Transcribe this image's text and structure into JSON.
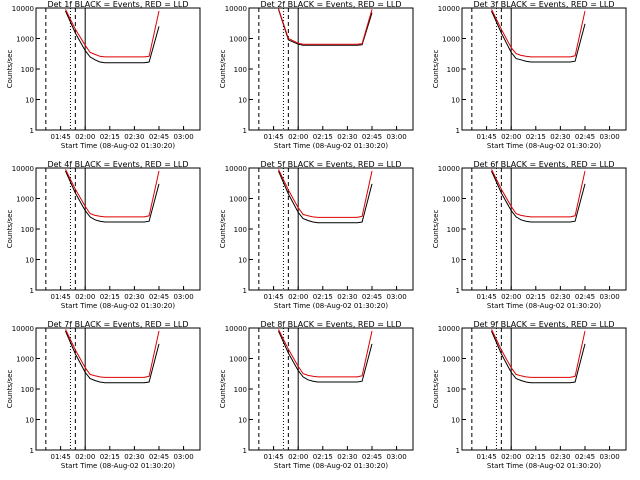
{
  "panel_common": {
    "ylabel": "Counts/sec",
    "xlabel": "Start Time (08-Aug-02 01:30:20)",
    "y_tick_labels": [
      "1",
      "10",
      "100",
      "1000",
      "10000"
    ],
    "x_tick_labels": [
      "01:45",
      "02:00",
      "02:15",
      "02:30",
      "02:45",
      "03:00"
    ],
    "colors": {
      "events": "#000000",
      "lld": "#e00000",
      "axes": "#000000"
    }
  },
  "chart_data": [
    {
      "type": "line",
      "title": "Det 1f BLACK = Events, RED = LLD",
      "xlabel": "Start Time (08-Aug-02 01:30:20)",
      "ylabel": "Counts/sec",
      "y_scale": "log",
      "ylim": [
        1,
        10000
      ],
      "x_ticks": [
        "01:45",
        "02:00",
        "02:15",
        "02:30",
        "02:45",
        "03:00"
      ],
      "series": [
        {
          "name": "Events",
          "color": "#000000",
          "x": [
            1.8,
            1.9,
            2.0,
            2.05,
            2.1,
            2.15,
            2.2,
            2.25,
            2.3,
            2.35,
            2.4,
            2.45,
            2.5,
            2.55,
            2.6,
            2.65,
            2.75
          ],
          "y": [
            8000,
            1500,
            400,
            250,
            200,
            170,
            160,
            160,
            160,
            160,
            160,
            160,
            160,
            160,
            160,
            170,
            2500
          ]
        },
        {
          "name": "LLD",
          "color": "#e00000",
          "x": [
            1.8,
            1.9,
            2.0,
            2.05,
            2.1,
            2.15,
            2.2,
            2.25,
            2.3,
            2.35,
            2.4,
            2.45,
            2.5,
            2.55,
            2.6,
            2.65,
            2.75
          ],
          "y": [
            9000,
            2000,
            600,
            350,
            300,
            260,
            250,
            250,
            250,
            250,
            250,
            250,
            250,
            250,
            250,
            260,
            8000
          ]
        }
      ]
    },
    {
      "type": "line",
      "title": "Det 2f BLACK = Events, RED = LLD",
      "xlabel": "Start Time (08-Aug-02 01:30:20)",
      "ylabel": "Counts/sec",
      "y_scale": "log",
      "ylim": [
        1,
        10000
      ],
      "x_ticks": [
        "01:45",
        "02:00",
        "02:15",
        "02:30",
        "02:45",
        "03:00"
      ],
      "series": [
        {
          "name": "Events",
          "color": "#000000",
          "x": [
            1.8,
            1.9,
            2.0,
            2.05,
            2.1,
            2.15,
            2.2,
            2.25,
            2.3,
            2.35,
            2.4,
            2.45,
            2.5,
            2.55,
            2.6,
            2.65,
            2.75
          ],
          "y": [
            9000,
            900,
            650,
            600,
            600,
            600,
            600,
            600,
            600,
            600,
            600,
            600,
            600,
            600,
            600,
            620,
            7000
          ]
        },
        {
          "name": "LLD",
          "color": "#e00000",
          "x": [
            1.8,
            1.9,
            2.0,
            2.05,
            2.1,
            2.15,
            2.2,
            2.25,
            2.3,
            2.35,
            2.4,
            2.45,
            2.5,
            2.55,
            2.6,
            2.65,
            2.75
          ],
          "y": [
            9500,
            1000,
            700,
            650,
            650,
            650,
            650,
            650,
            650,
            650,
            650,
            650,
            650,
            650,
            650,
            680,
            9000
          ]
        }
      ]
    },
    {
      "type": "line",
      "title": "Det 3f BLACK = Events, RED = LLD",
      "xlabel": "Start Time (08-Aug-02 01:30:20)",
      "ylabel": "Counts/sec",
      "y_scale": "log",
      "ylim": [
        1,
        10000
      ],
      "x_ticks": [
        "01:45",
        "02:00",
        "02:15",
        "02:30",
        "02:45",
        "03:00"
      ],
      "series": [
        {
          "name": "Events",
          "color": "#000000",
          "x": [
            1.8,
            1.9,
            2.0,
            2.05,
            2.1,
            2.15,
            2.2,
            2.25,
            2.3,
            2.35,
            2.4,
            2.45,
            2.5,
            2.55,
            2.6,
            2.65,
            2.75
          ],
          "y": [
            8000,
            1500,
            350,
            220,
            200,
            180,
            170,
            170,
            170,
            170,
            170,
            170,
            170,
            170,
            170,
            180,
            3000
          ]
        },
        {
          "name": "LLD",
          "color": "#e00000",
          "x": [
            1.8,
            1.9,
            2.0,
            2.05,
            2.1,
            2.15,
            2.2,
            2.25,
            2.3,
            2.35,
            2.4,
            2.45,
            2.5,
            2.55,
            2.6,
            2.65,
            2.75
          ],
          "y": [
            9000,
            2000,
            500,
            320,
            280,
            260,
            250,
            250,
            250,
            250,
            250,
            250,
            250,
            250,
            250,
            270,
            8000
          ]
        }
      ]
    },
    {
      "type": "line",
      "title": "Det 4f BLACK = Events, RED = LLD",
      "xlabel": "Start Time (08-Aug-02 01:30:20)",
      "ylabel": "Counts/sec",
      "y_scale": "log",
      "ylim": [
        1,
        10000
      ],
      "x_ticks": [
        "01:45",
        "02:00",
        "02:15",
        "02:30",
        "02:45",
        "03:00"
      ],
      "series": [
        {
          "name": "Events",
          "color": "#000000",
          "x": [
            1.8,
            1.9,
            2.0,
            2.05,
            2.1,
            2.15,
            2.2,
            2.25,
            2.3,
            2.35,
            2.4,
            2.45,
            2.5,
            2.55,
            2.6,
            2.65,
            2.75
          ],
          "y": [
            8000,
            1500,
            400,
            250,
            200,
            180,
            170,
            170,
            170,
            170,
            170,
            170,
            170,
            170,
            170,
            180,
            3000
          ]
        },
        {
          "name": "LLD",
          "color": "#e00000",
          "x": [
            1.8,
            1.9,
            2.0,
            2.05,
            2.1,
            2.15,
            2.2,
            2.25,
            2.3,
            2.35,
            2.4,
            2.45,
            2.5,
            2.55,
            2.6,
            2.65,
            2.75
          ],
          "y": [
            9000,
            2000,
            550,
            320,
            280,
            260,
            250,
            250,
            250,
            250,
            250,
            250,
            250,
            250,
            250,
            270,
            8000
          ]
        }
      ]
    },
    {
      "type": "line",
      "title": "Det 5f BLACK = Events, RED = LLD",
      "xlabel": "Start Time (08-Aug-02 01:30:20)",
      "ylabel": "Counts/sec",
      "y_scale": "log",
      "ylim": [
        1,
        10000
      ],
      "x_ticks": [
        "01:45",
        "02:00",
        "02:15",
        "02:30",
        "02:45",
        "03:00"
      ],
      "series": [
        {
          "name": "Events",
          "color": "#000000",
          "x": [
            1.8,
            1.9,
            2.0,
            2.05,
            2.1,
            2.15,
            2.2,
            2.25,
            2.3,
            2.35,
            2.4,
            2.45,
            2.5,
            2.55,
            2.6,
            2.65,
            2.75
          ],
          "y": [
            8000,
            1400,
            350,
            220,
            190,
            170,
            160,
            160,
            160,
            160,
            160,
            160,
            160,
            160,
            160,
            170,
            3000
          ]
        },
        {
          "name": "LLD",
          "color": "#e00000",
          "x": [
            1.8,
            1.9,
            2.0,
            2.05,
            2.1,
            2.15,
            2.2,
            2.25,
            2.3,
            2.35,
            2.4,
            2.45,
            2.5,
            2.55,
            2.6,
            2.65,
            2.75
          ],
          "y": [
            9000,
            1900,
            500,
            300,
            270,
            250,
            240,
            240,
            240,
            240,
            240,
            240,
            240,
            240,
            240,
            260,
            8000
          ]
        }
      ]
    },
    {
      "type": "line",
      "title": "Det 6f BLACK = Events, RED = LLD",
      "xlabel": "Start Time (08-Aug-02 01:30:20)",
      "ylabel": "Counts/sec",
      "y_scale": "log",
      "ylim": [
        1,
        10000
      ],
      "x_ticks": [
        "01:45",
        "02:00",
        "02:15",
        "02:30",
        "02:45",
        "03:00"
      ],
      "series": [
        {
          "name": "Events",
          "color": "#000000",
          "x": [
            1.8,
            1.9,
            2.0,
            2.05,
            2.1,
            2.15,
            2.2,
            2.25,
            2.3,
            2.35,
            2.4,
            2.45,
            2.5,
            2.55,
            2.6,
            2.65,
            2.75
          ],
          "y": [
            8000,
            1500,
            400,
            250,
            200,
            180,
            170,
            170,
            170,
            170,
            170,
            170,
            170,
            170,
            170,
            180,
            3000
          ]
        },
        {
          "name": "LLD",
          "color": "#e00000",
          "x": [
            1.8,
            1.9,
            2.0,
            2.05,
            2.1,
            2.15,
            2.2,
            2.25,
            2.3,
            2.35,
            2.4,
            2.45,
            2.5,
            2.55,
            2.6,
            2.65,
            2.75
          ],
          "y": [
            9000,
            2000,
            550,
            320,
            280,
            260,
            250,
            250,
            250,
            250,
            250,
            250,
            250,
            250,
            250,
            270,
            8000
          ]
        }
      ]
    },
    {
      "type": "line",
      "title": "Det 7f BLACK = Events, RED = LLD",
      "xlabel": "Start Time (08-Aug-02 01:30:20)",
      "ylabel": "Counts/sec",
      "y_scale": "log",
      "ylim": [
        1,
        10000
      ],
      "x_ticks": [
        "01:45",
        "02:00",
        "02:15",
        "02:30",
        "02:45",
        "03:00"
      ],
      "series": [
        {
          "name": "Events",
          "color": "#000000",
          "x": [
            1.8,
            1.9,
            2.0,
            2.05,
            2.1,
            2.15,
            2.2,
            2.25,
            2.3,
            2.35,
            2.4,
            2.45,
            2.5,
            2.55,
            2.6,
            2.65,
            2.75
          ],
          "y": [
            8000,
            1400,
            350,
            220,
            190,
            170,
            160,
            160,
            160,
            160,
            160,
            160,
            160,
            160,
            160,
            170,
            3000
          ]
        },
        {
          "name": "LLD",
          "color": "#e00000",
          "x": [
            1.8,
            1.9,
            2.0,
            2.05,
            2.1,
            2.15,
            2.2,
            2.25,
            2.3,
            2.35,
            2.4,
            2.45,
            2.5,
            2.55,
            2.6,
            2.65,
            2.75
          ],
          "y": [
            9000,
            1900,
            500,
            300,
            270,
            250,
            240,
            240,
            240,
            240,
            240,
            240,
            240,
            240,
            240,
            260,
            8000
          ]
        }
      ]
    },
    {
      "type": "line",
      "title": "Det 8f BLACK = Events, RED = LLD",
      "xlabel": "Start Time (08-Aug-02 01:30:20)",
      "ylabel": "Counts/sec",
      "y_scale": "log",
      "ylim": [
        1,
        10000
      ],
      "x_ticks": [
        "01:45",
        "02:00",
        "02:15",
        "02:30",
        "02:45",
        "03:00"
      ],
      "series": [
        {
          "name": "Events",
          "color": "#000000",
          "x": [
            1.8,
            1.9,
            2.0,
            2.05,
            2.1,
            2.15,
            2.2,
            2.25,
            2.3,
            2.35,
            2.4,
            2.45,
            2.5,
            2.55,
            2.6,
            2.65,
            2.75
          ],
          "y": [
            8000,
            1500,
            400,
            250,
            200,
            180,
            170,
            170,
            170,
            170,
            170,
            170,
            170,
            170,
            170,
            180,
            3000
          ]
        },
        {
          "name": "LLD",
          "color": "#e00000",
          "x": [
            1.8,
            1.9,
            2.0,
            2.05,
            2.1,
            2.15,
            2.2,
            2.25,
            2.3,
            2.35,
            2.4,
            2.45,
            2.5,
            2.55,
            2.6,
            2.65,
            2.75
          ],
          "y": [
            9000,
            2000,
            550,
            320,
            280,
            260,
            250,
            250,
            250,
            250,
            250,
            250,
            250,
            250,
            250,
            270,
            8000
          ]
        }
      ]
    },
    {
      "type": "line",
      "title": "Det 9f BLACK = Events, RED = LLD",
      "xlabel": "Start Time (08-Aug-02 01:30:20)",
      "ylabel": "Counts/sec",
      "y_scale": "log",
      "ylim": [
        1,
        10000
      ],
      "x_ticks": [
        "01:45",
        "02:00",
        "02:15",
        "02:30",
        "02:45",
        "03:00"
      ],
      "series": [
        {
          "name": "Events",
          "color": "#000000",
          "x": [
            1.8,
            1.9,
            2.0,
            2.05,
            2.1,
            2.15,
            2.2,
            2.25,
            2.3,
            2.35,
            2.4,
            2.45,
            2.5,
            2.55,
            2.6,
            2.65,
            2.75
          ],
          "y": [
            8000,
            1400,
            350,
            220,
            190,
            170,
            160,
            160,
            160,
            160,
            160,
            160,
            160,
            160,
            160,
            170,
            3000
          ]
        },
        {
          "name": "LLD",
          "color": "#e00000",
          "x": [
            1.8,
            1.9,
            2.0,
            2.05,
            2.1,
            2.15,
            2.2,
            2.25,
            2.3,
            2.35,
            2.4,
            2.45,
            2.5,
            2.55,
            2.6,
            2.65,
            2.75
          ],
          "y": [
            9000,
            1900,
            500,
            300,
            270,
            250,
            240,
            240,
            240,
            240,
            240,
            240,
            240,
            240,
            240,
            260,
            8000
          ]
        }
      ]
    }
  ]
}
